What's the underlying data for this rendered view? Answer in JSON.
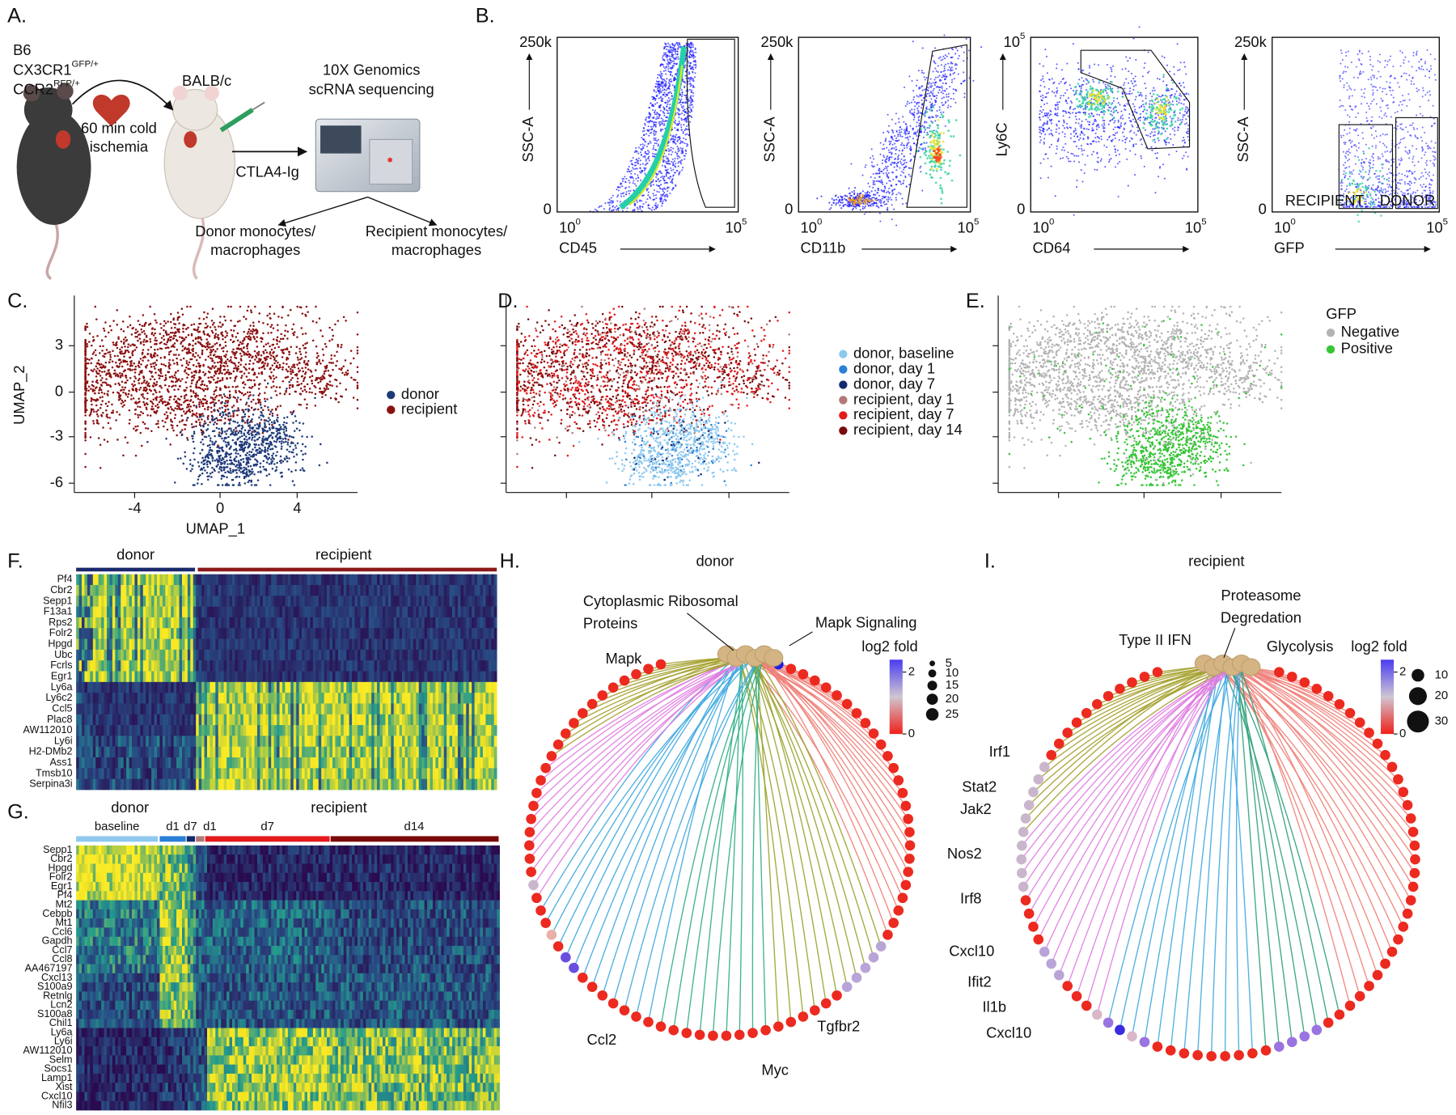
{
  "panel_labels": [
    "A.",
    "B.",
    "C.",
    "D.",
    "E.",
    "F.",
    "G.",
    "H.",
    "I."
  ],
  "a": {
    "donor_strain": "B6",
    "donor_gene1": {
      "name": "CX3CR1",
      "sup": "GFP/+"
    },
    "donor_gene2": {
      "name": "CCR2",
      "sup": "RFP/+"
    },
    "recipient_strain": "BALB/c",
    "ischemia": [
      "60 min cold",
      "ischemia"
    ],
    "treatment": "CTLA4-Ig",
    "sequencing": [
      "10X Genomics",
      "scRNA sequencing"
    ],
    "donor_cells": {
      "lines": [
        "Donor monocytes/",
        "macrophages"
      ],
      "color": "#1b2a6b"
    },
    "recipient_cells": {
      "lines": [
        "Recipient monocytes/",
        "macrophages"
      ],
      "color": "#c8161d"
    }
  },
  "b": {
    "plots": [
      {
        "y_label": "SSC-A",
        "x_label": "CD45",
        "y_max": "250k",
        "y_min": 0,
        "x_min": {
          "base": 10,
          "exp": 0
        },
        "x_max": {
          "base": 10,
          "exp": 5
        }
      },
      {
        "y_label": "SSC-A",
        "x_label": "CD11b",
        "y_max": "250k",
        "y_min": 0,
        "x_min": {
          "base": 10,
          "exp": 0
        },
        "x_max": {
          "base": 10,
          "exp": 5
        }
      },
      {
        "y_label": "Ly6C",
        "x_label": "CD64",
        "y_max": {
          "base": 10,
          "exp": 5
        },
        "y_min": 0,
        "x_min": {
          "base": 10,
          "exp": 0
        },
        "x_max": {
          "base": 10,
          "exp": 5
        }
      },
      {
        "y_label": "SSC-A",
        "x_label": "GFP",
        "y_max": "250k",
        "y_min": 0,
        "x_min": {
          "base": 10,
          "exp": 0
        },
        "x_max": {
          "base": 10,
          "exp": 5
        }
      }
    ],
    "gates": [
      {
        "name": "RECIPIENT",
        "color": "#c8161d"
      },
      {
        "name": "DONOR",
        "color": "#1b2a6b"
      }
    ]
  },
  "c": {
    "x_label": "UMAP_1",
    "y_label": "UMAP_2",
    "xticks": [
      -4,
      0,
      4
    ],
    "yticks": [
      3,
      0,
      -3,
      -6
    ],
    "legend": [
      {
        "name": "donor",
        "color": "#1f3a7a"
      },
      {
        "name": "recipient",
        "color": "#8b1010"
      }
    ]
  },
  "d": {
    "legend": [
      {
        "name": "donor, baseline",
        "color": "#8ec8ee"
      },
      {
        "name": "donor, day 1",
        "color": "#2a7fd6"
      },
      {
        "name": "donor, day 7",
        "color": "#142a6e"
      },
      {
        "name": "recipient, day 1",
        "color": "#b07a78"
      },
      {
        "name": "recipient, day 7",
        "color": "#e5191b"
      },
      {
        "name": "recipient, day 14",
        "color": "#7a0a0a"
      }
    ]
  },
  "e": {
    "legend_title": "GFP",
    "legend": [
      {
        "name": "Negative",
        "color": "#b3b3b3"
      },
      {
        "name": "Positive",
        "color": "#35c535"
      }
    ]
  },
  "f": {
    "groups": [
      {
        "name": "donor",
        "color": "#1b2a6b"
      },
      {
        "name": "recipient",
        "color": "#8b1a1a"
      }
    ],
    "genes": [
      "Pf4",
      "Cbr2",
      "Sepp1",
      "F13a1",
      "Rps2",
      "Folr2",
      "Hpgd",
      "Ubc",
      "Fcrls",
      "Egr1",
      "Ly6a",
      "Ly6c2",
      "Ccl5",
      "Plac8",
      "AW112010",
      "Ly6i",
      "H2-DMb2",
      "Ass1",
      "Tmsb10",
      "Serpina3i"
    ]
  },
  "g": {
    "groups": [
      {
        "name": "donor",
        "color": "#1b2a6b"
      },
      {
        "name": "recipient",
        "color": "#c8161d"
      }
    ],
    "subgroups": [
      {
        "name": "baseline",
        "color": "#8ec8ee",
        "group": 0
      },
      {
        "name": "d1",
        "color": "#2a7fd6",
        "group": 0
      },
      {
        "name": "d7",
        "color": "#142a6e",
        "group": 0
      },
      {
        "name": "d1",
        "color": "#b07a78",
        "group": 1
      },
      {
        "name": "d7",
        "color": "#e5191b",
        "group": 1
      },
      {
        "name": "d14",
        "color": "#7a0a0a",
        "group": 1
      }
    ],
    "genes": [
      "Sepp1",
      "Cbr2",
      "Hpgd",
      "Folr2",
      "Egr1",
      "Pf4",
      "Mt2",
      "Cebpb",
      "Mt1",
      "Ccl6",
      "Gapdh",
      "Ccl7",
      "Ccl8",
      "AA467197",
      "Cxcl13",
      "S100a9",
      "Retnlg",
      "Lcn2",
      "S100a8",
      "Chil1",
      "Ly6a",
      "Ly6i",
      "AW112010",
      "Selm",
      "Socs1",
      "Lamp1",
      "Xist",
      "Cxcl10",
      "Nfil3"
    ]
  },
  "h": {
    "title": "donor",
    "title_color": "#1b2a6b",
    "pathways": [
      "Cytoplasmic Ribosomal",
      "Proteins",
      "Mapk Signaling",
      "Mapk"
    ],
    "genes": [
      "Ccl2",
      "Myc",
      "Tgfbr2"
    ],
    "legend_title": "log2 fold",
    "color_ticks": [
      2,
      0
    ],
    "size_ticks": [
      5,
      10,
      15,
      20,
      25
    ]
  },
  "i": {
    "title": "recipient",
    "title_color": "#c8161d",
    "pathways": [
      "Proteasome",
      "Degredation",
      "Type II IFN",
      "Glycolysis"
    ],
    "genes": [
      "Irf1",
      "Stat2",
      "Jak2",
      "Nos2",
      "Irf8",
      "Cxcl10",
      "Ifit2",
      "Il1b",
      "Cxcl10"
    ],
    "legend_title": "log2 fold",
    "color_ticks": [
      2,
      0
    ],
    "size_ticks": [
      10,
      20,
      30
    ]
  }
}
